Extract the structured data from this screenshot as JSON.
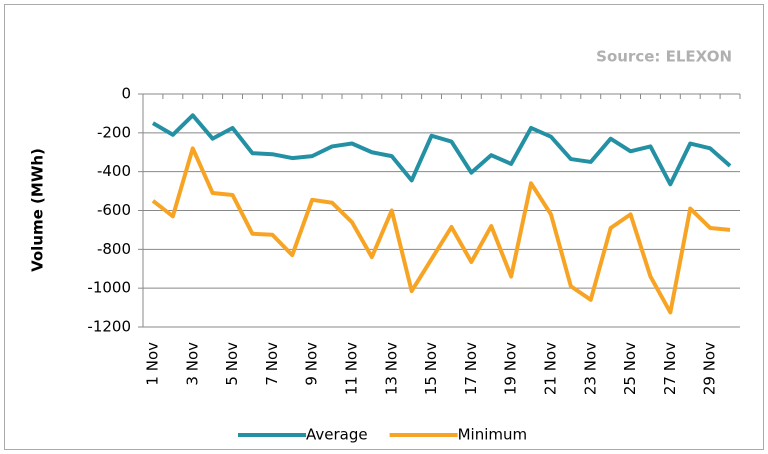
{
  "chart_data": {
    "type": "line",
    "annotation": "Source: ELEXON",
    "y_label": "Volume (MWh)",
    "categories": [
      "1 Nov",
      null,
      "3 Nov",
      null,
      "5 Nov",
      null,
      "7 Nov",
      null,
      "9 Nov",
      null,
      "11 Nov",
      null,
      "13 Nov",
      null,
      "15 Nov",
      null,
      "17 Nov",
      null,
      "19 Nov",
      null,
      "21 Nov",
      null,
      "23 Nov",
      null,
      "25 Nov",
      null,
      "27 Nov",
      null,
      "29 Nov",
      null
    ],
    "series": [
      {
        "name": "Average",
        "color": "#2391a3",
        "values": [
          -150,
          -210,
          -110,
          -230,
          -175,
          -305,
          -310,
          -330,
          -320,
          -270,
          -255,
          -300,
          -320,
          -445,
          -215,
          -245,
          -405,
          -315,
          -360,
          -175,
          -220,
          -335,
          -350,
          -230,
          -295,
          -270,
          -465,
          -255,
          -280,
          -370
        ]
      },
      {
        "name": "Minimum",
        "color": "#f7a425",
        "values": [
          -550,
          -630,
          -280,
          -510,
          -520,
          -720,
          -725,
          -830,
          -545,
          -560,
          -660,
          -840,
          -600,
          -1015,
          -850,
          -685,
          -865,
          -680,
          -940,
          -460,
          -620,
          -990,
          -1060,
          -690,
          -620,
          -940,
          -1125,
          -590,
          -690,
          -700
        ]
      }
    ],
    "ylim": [
      -1200,
      0
    ],
    "yticks": [
      0,
      -200,
      -400,
      -600,
      -800,
      -1000,
      -1200
    ],
    "grid": true,
    "legend": "bottom"
  }
}
